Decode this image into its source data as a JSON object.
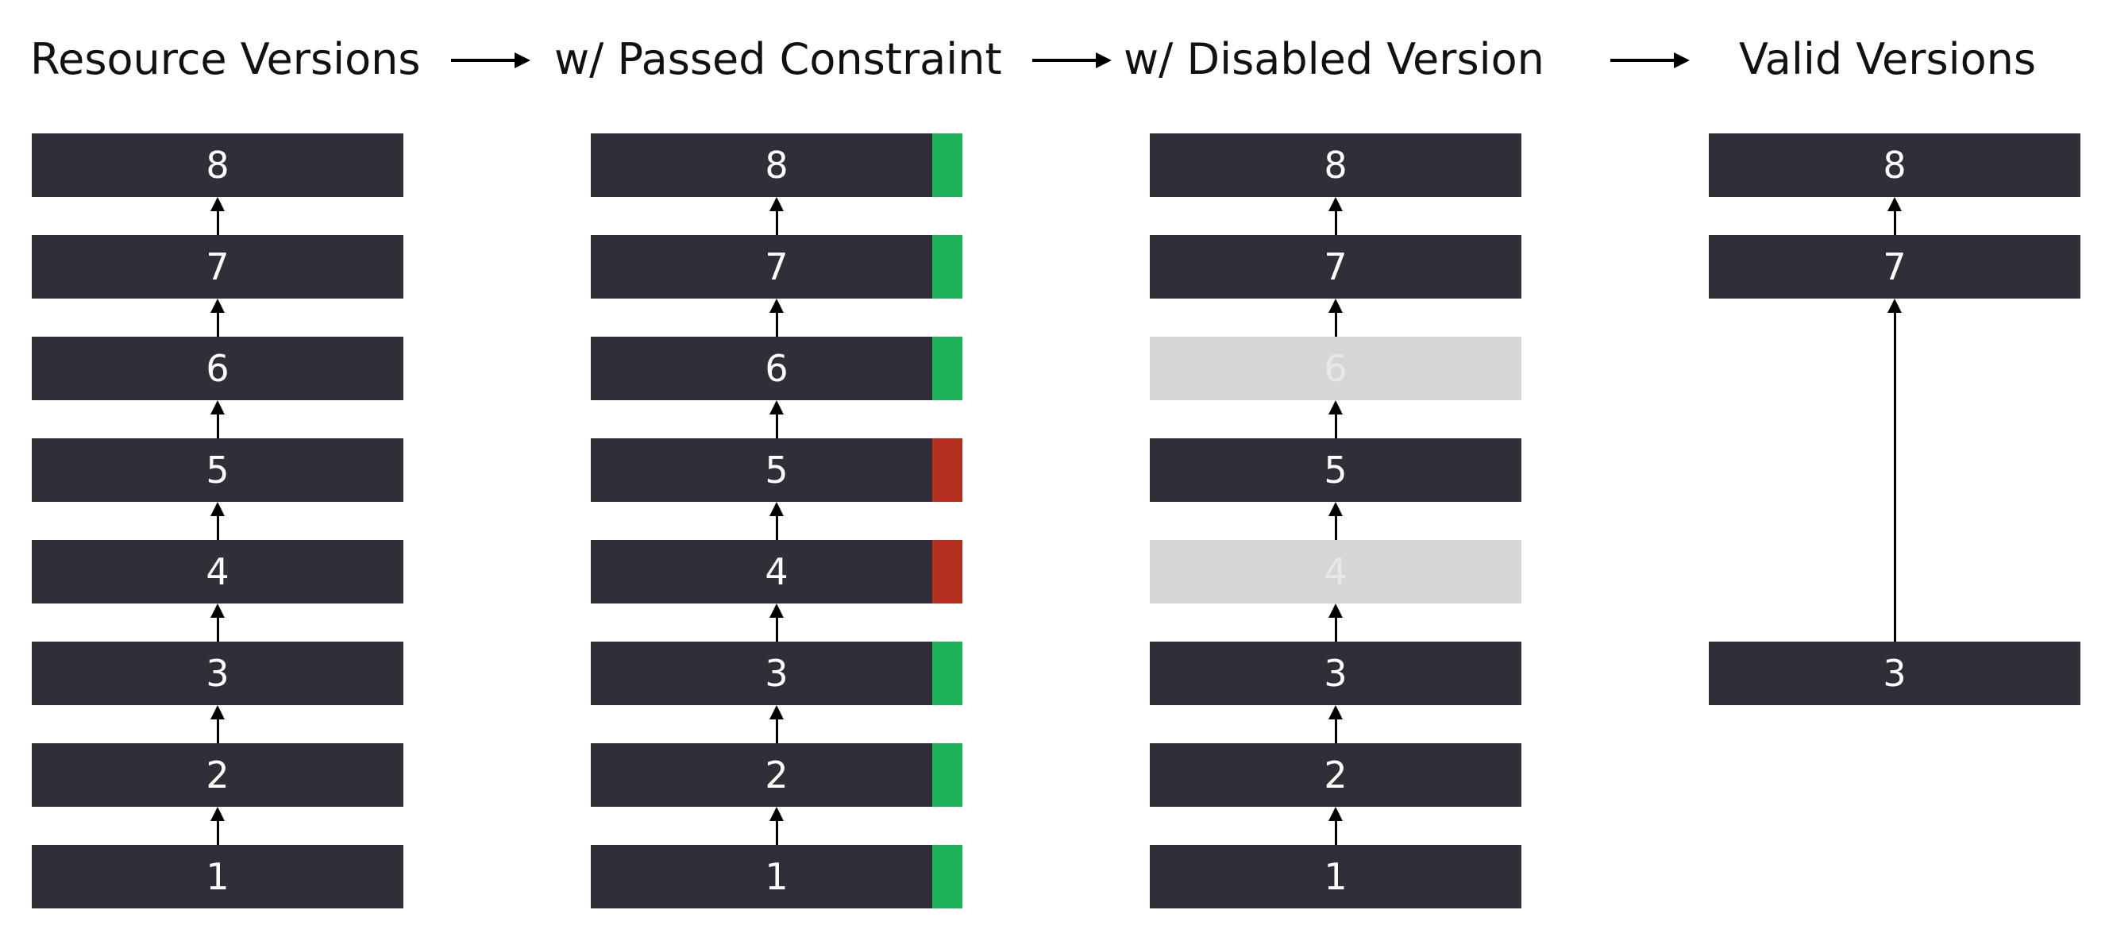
{
  "headings": [
    "Resource Versions",
    "w/ Passed Constraint",
    "w/ Disabled Version",
    "Valid Versions"
  ],
  "columns": [
    {
      "versions": [
        {
          "label": "8"
        },
        {
          "label": "7"
        },
        {
          "label": "6"
        },
        {
          "label": "5"
        },
        {
          "label": "4"
        },
        {
          "label": "3"
        },
        {
          "label": "2"
        },
        {
          "label": "1"
        }
      ]
    },
    {
      "versions": [
        {
          "label": "8",
          "status": "passed"
        },
        {
          "label": "7",
          "status": "passed"
        },
        {
          "label": "6",
          "status": "passed"
        },
        {
          "label": "5",
          "status": "failed"
        },
        {
          "label": "4",
          "status": "failed"
        },
        {
          "label": "3",
          "status": "passed"
        },
        {
          "label": "2",
          "status": "passed"
        },
        {
          "label": "1",
          "status": "passed"
        }
      ]
    },
    {
      "versions": [
        {
          "label": "8"
        },
        {
          "label": "7"
        },
        {
          "label": "6",
          "disabled": true
        },
        {
          "label": "5"
        },
        {
          "label": "4",
          "disabled": true
        },
        {
          "label": "3"
        },
        {
          "label": "2"
        },
        {
          "label": "1"
        }
      ]
    },
    {
      "versions": [
        {
          "label": "8"
        },
        {
          "label": "7"
        },
        {
          "label": "3"
        }
      ]
    }
  ],
  "colors": {
    "box": "#322e38",
    "disabled_box": "#d6d6d8",
    "passed": "#1cb35b",
    "failed": "#b32f20",
    "arrow": "#000000"
  }
}
